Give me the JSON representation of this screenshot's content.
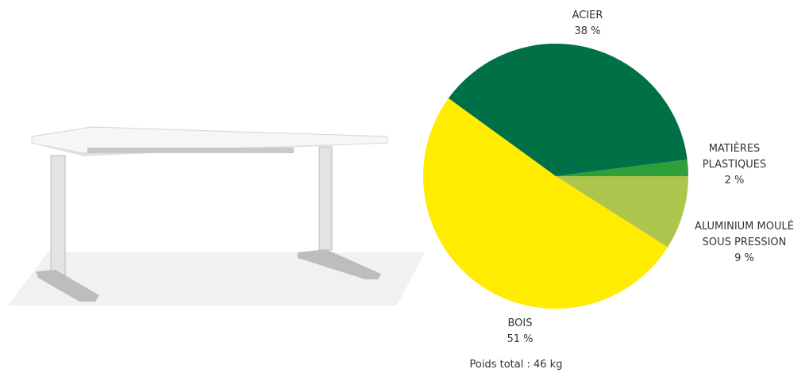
{
  "chart_data": {
    "type": "pie",
    "categories": [
      "ACIER",
      "MATIÈRES PLASTIQUES",
      "ALUMINIUM MOULÉ SOUS PRESSION",
      "BOIS"
    ],
    "values": [
      38,
      2,
      9,
      51
    ],
    "value_labels": [
      "38 %",
      "2 %",
      "9 %",
      "51 %"
    ],
    "colors": [
      "#007046",
      "#2f9f3b",
      "#aec54d",
      "#ffec00"
    ],
    "note": "Poids total : 46 kg"
  }
}
